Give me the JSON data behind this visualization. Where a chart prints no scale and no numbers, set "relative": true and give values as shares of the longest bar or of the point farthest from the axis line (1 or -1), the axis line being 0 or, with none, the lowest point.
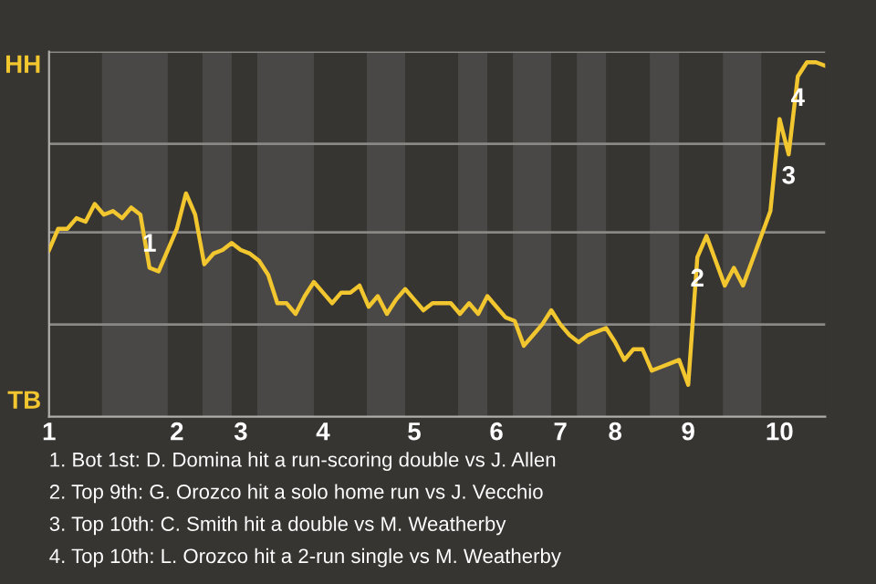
{
  "chart_data": {
    "type": "line",
    "relative": true,
    "categories": [
      "1",
      null,
      null,
      null,
      null,
      null,
      null,
      null,
      null,
      null,
      null,
      null,
      null,
      null,
      "2",
      null,
      null,
      null,
      null,
      null,
      null,
      "3",
      null,
      null,
      null,
      null,
      null,
      null,
      null,
      null,
      "4",
      null,
      null,
      null,
      null,
      null,
      null,
      null,
      null,
      null,
      "5",
      null,
      null,
      null,
      null,
      null,
      null,
      null,
      null,
      "6",
      null,
      null,
      null,
      null,
      null,
      null,
      "7",
      null,
      null,
      null,
      null,
      null,
      "8",
      null,
      null,
      null,
      null,
      null,
      null,
      null,
      "9",
      null,
      null,
      null,
      null,
      null,
      null,
      null,
      null,
      null,
      "10",
      null,
      null,
      null,
      null,
      null
    ],
    "series": [
      {
        "color": "#f2c62f",
        "values": [
          0.47,
          0.53,
          0.53,
          0.56,
          0.55,
          0.6,
          0.57,
          0.58,
          0.56,
          0.59,
          0.57,
          0.42,
          0.41,
          0.47,
          0.53,
          0.63,
          0.57,
          0.43,
          0.46,
          0.47,
          0.49,
          0.47,
          0.46,
          0.44,
          0.4,
          0.32,
          0.32,
          0.29,
          0.34,
          0.38,
          0.35,
          0.32,
          0.35,
          0.35,
          0.37,
          0.31,
          0.34,
          0.29,
          0.33,
          0.36,
          0.33,
          0.3,
          0.32,
          0.32,
          0.32,
          0.29,
          0.32,
          0.29,
          0.34,
          0.31,
          0.28,
          0.27,
          0.2,
          0.23,
          0.26,
          0.3,
          0.26,
          0.23,
          0.21,
          0.23,
          0.24,
          0.25,
          0.21,
          0.16,
          0.19,
          0.19,
          0.13,
          0.14,
          0.15,
          0.16,
          0.09,
          0.45,
          0.51,
          0.44,
          0.37,
          0.42,
          0.37,
          0.44,
          0.51,
          0.58,
          0.84,
          0.74,
          0.96,
          1,
          1,
          0.99
        ]
      }
    ],
    "marker": "none",
    "line_style": "solid",
    "ref_lines": [
      {
        "axis": "y",
        "value": 0.26,
        "label": null,
        "color": "#8a8884"
      },
      {
        "axis": "y",
        "value": 0.52,
        "label": null,
        "color": "#8a8884"
      },
      {
        "axis": "y",
        "value": 0.77,
        "label": null,
        "color": "#8a8884"
      },
      {
        "axis": "y",
        "value": 1.03,
        "label": null,
        "color": "#8a8884"
      }
    ],
    "annotations": [
      {
        "text": "1",
        "y": 0.42
      },
      {
        "text": "2",
        "y": 0.45
      },
      {
        "text": "3",
        "y": 0.74
      },
      {
        "text": "4",
        "y": 0.96
      },
      "HH",
      "TB",
      "1. Bot 1st: D. Domina hit a run-scoring double vs J. Allen",
      "2. Top 9th: G. Orozco hit a solo home run vs J. Vecchio",
      "3. Top 10th: C. Smith hit a double vs M. Weatherby",
      "4. Top 10th: L. Orozco hit a 2-run single vs M. Weatherby"
    ]
  }
}
